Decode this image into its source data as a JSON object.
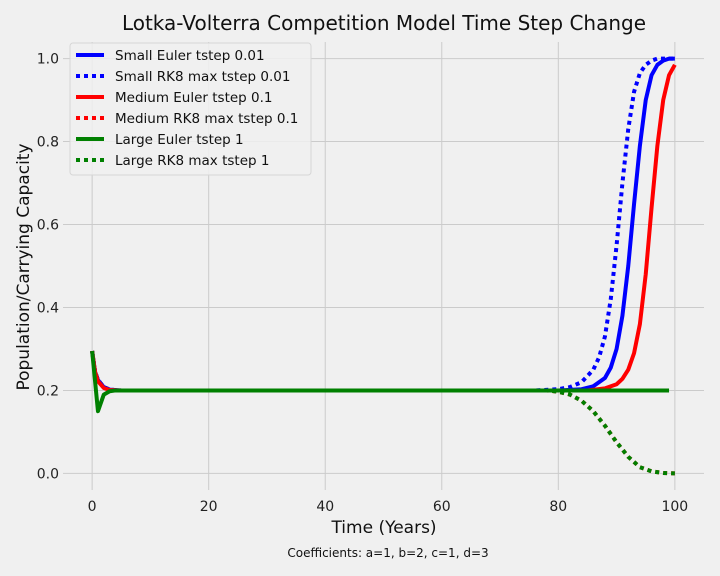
{
  "chart_data": {
    "type": "line",
    "title": "Lotka-Volterra Competition Model Time Step Change",
    "xlabel": "Time (Years)",
    "ylabel": "Population/Carrying Capacity",
    "caption": "Coefficients: a=1, b=2, c=1, d=3",
    "xlim": [
      -5,
      105
    ],
    "ylim": [
      -0.04,
      1.04
    ],
    "xticks": [
      0,
      20,
      40,
      60,
      80,
      100
    ],
    "xtick_labels": [
      "0",
      "20",
      "40",
      "60",
      "80",
      "100"
    ],
    "yticks": [
      0.0,
      0.2,
      0.4,
      0.6,
      0.8,
      1.0
    ],
    "ytick_labels": [
      "0.0",
      "0.2",
      "0.4",
      "0.6",
      "0.8",
      "1.0"
    ],
    "grid": true,
    "legend_position": "top-left",
    "series": [
      {
        "name": "Small Euler tstep 0.01",
        "color": "#0000ff",
        "style": "solid",
        "points": [
          [
            0,
            0.295
          ],
          [
            0.5,
            0.245
          ],
          [
            1,
            0.225
          ],
          [
            2,
            0.208
          ],
          [
            3,
            0.202
          ],
          [
            5,
            0.2
          ],
          [
            60,
            0.2
          ],
          [
            80,
            0.2
          ],
          [
            84,
            0.203
          ],
          [
            86,
            0.21
          ],
          [
            88,
            0.23
          ],
          [
            89,
            0.255
          ],
          [
            90,
            0.3
          ],
          [
            91,
            0.38
          ],
          [
            92,
            0.5
          ],
          [
            93,
            0.65
          ],
          [
            94,
            0.79
          ],
          [
            95,
            0.9
          ],
          [
            96,
            0.96
          ],
          [
            97,
            0.985
          ],
          [
            98,
            0.995
          ],
          [
            99,
            1.0
          ],
          [
            100,
            1.0
          ]
        ]
      },
      {
        "name": "Small RK8 max tstep 0.01",
        "color": "#0000ff",
        "style": "dotted",
        "points": [
          [
            0,
            0.295
          ],
          [
            0.5,
            0.245
          ],
          [
            1,
            0.225
          ],
          [
            2,
            0.208
          ],
          [
            3,
            0.202
          ],
          [
            5,
            0.2
          ],
          [
            60,
            0.2
          ],
          [
            76,
            0.2
          ],
          [
            80,
            0.203
          ],
          [
            82,
            0.208
          ],
          [
            84,
            0.22
          ],
          [
            86,
            0.25
          ],
          [
            87,
            0.28
          ],
          [
            88,
            0.33
          ],
          [
            89,
            0.42
          ],
          [
            90,
            0.55
          ],
          [
            91,
            0.7
          ],
          [
            92,
            0.83
          ],
          [
            93,
            0.92
          ],
          [
            94,
            0.965
          ],
          [
            95,
            0.985
          ],
          [
            96,
            0.995
          ],
          [
            97,
            1.0
          ],
          [
            100,
            1.0
          ]
        ]
      },
      {
        "name": "Medium Euler tstep 0.1",
        "color": "#ff0000",
        "style": "solid",
        "points": [
          [
            0,
            0.295
          ],
          [
            0.5,
            0.245
          ],
          [
            1,
            0.222
          ],
          [
            2,
            0.206
          ],
          [
            3,
            0.201
          ],
          [
            5,
            0.2
          ],
          [
            60,
            0.2
          ],
          [
            85,
            0.2
          ],
          [
            88,
            0.205
          ],
          [
            90,
            0.215
          ],
          [
            91,
            0.228
          ],
          [
            92,
            0.25
          ],
          [
            93,
            0.29
          ],
          [
            94,
            0.36
          ],
          [
            95,
            0.48
          ],
          [
            96,
            0.64
          ],
          [
            97,
            0.79
          ],
          [
            98,
            0.9
          ],
          [
            99,
            0.96
          ],
          [
            100,
            0.985
          ]
        ]
      },
      {
        "name": "Medium RK8 max tstep 0.1",
        "color": "#ff0000",
        "style": "dotted",
        "points": [
          [
            0,
            0.295
          ],
          [
            0.5,
            0.245
          ],
          [
            1,
            0.225
          ],
          [
            2,
            0.208
          ],
          [
            3,
            0.202
          ],
          [
            5,
            0.2
          ],
          [
            60,
            0.2
          ],
          [
            78,
            0.2
          ],
          [
            80,
            0.197
          ],
          [
            82,
            0.19
          ],
          [
            84,
            0.175
          ],
          [
            86,
            0.15
          ],
          [
            88,
            0.115
          ],
          [
            90,
            0.075
          ],
          [
            92,
            0.04
          ],
          [
            94,
            0.015
          ],
          [
            96,
            0.005
          ],
          [
            98,
            0.001
          ],
          [
            100,
            0.0
          ]
        ]
      },
      {
        "name": "Large Euler tstep 1",
        "color": "#008000",
        "style": "solid",
        "points": [
          [
            0,
            0.295
          ],
          [
            1,
            0.15
          ],
          [
            2,
            0.19
          ],
          [
            3,
            0.198
          ],
          [
            4,
            0.2
          ],
          [
            5,
            0.2
          ],
          [
            10,
            0.2
          ],
          [
            99,
            0.2
          ]
        ]
      },
      {
        "name": "Large RK8 max tstep 1",
        "color": "#008000",
        "style": "dotted",
        "points": [
          [
            0,
            0.295
          ],
          [
            0.5,
            0.245
          ],
          [
            1,
            0.225
          ],
          [
            2,
            0.208
          ],
          [
            3,
            0.202
          ],
          [
            5,
            0.2
          ],
          [
            60,
            0.2
          ],
          [
            78,
            0.2
          ],
          [
            80,
            0.197
          ],
          [
            82,
            0.19
          ],
          [
            84,
            0.175
          ],
          [
            86,
            0.15
          ],
          [
            88,
            0.115
          ],
          [
            90,
            0.075
          ],
          [
            92,
            0.04
          ],
          [
            94,
            0.015
          ],
          [
            96,
            0.005
          ],
          [
            98,
            0.001
          ],
          [
            100,
            0.0
          ]
        ]
      }
    ]
  }
}
